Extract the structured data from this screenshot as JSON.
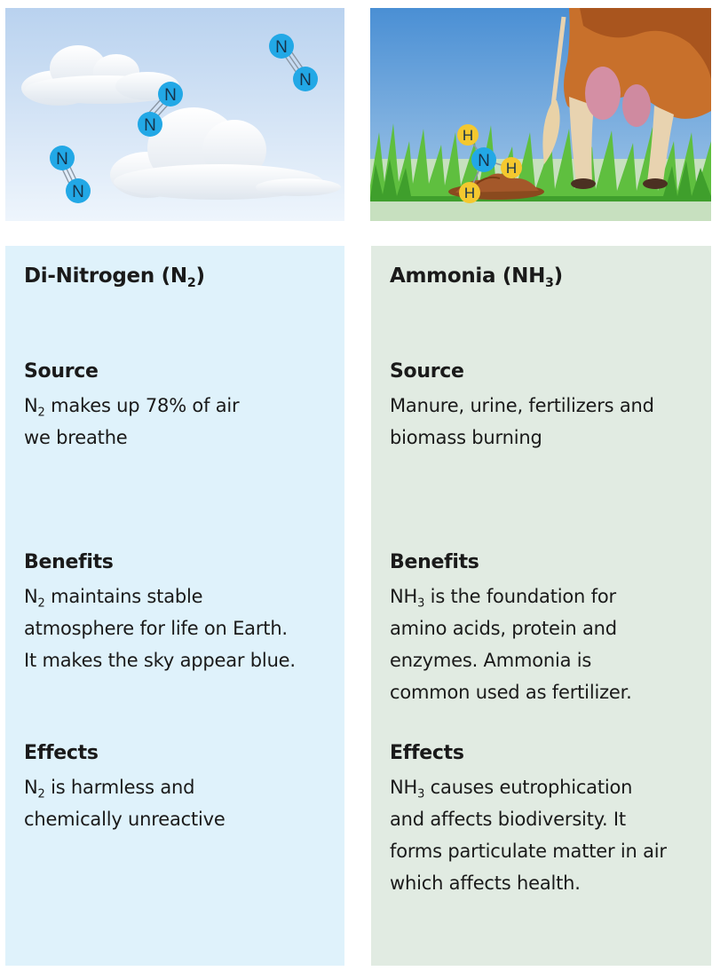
{
  "colors": {
    "left_panel": "#dff2fb",
    "right_panel": "#e1ebe2",
    "sky_top": "#b9d2ef",
    "grass": "#5fbf3f",
    "nitrogen_atom": "#22a8e6",
    "hydrogen_atom": "#f4c82f"
  },
  "atoms": {
    "nitrogen": "N",
    "hydrogen": "H"
  },
  "left": {
    "title": {
      "main": "Di-Nitrogen (N",
      "sub": "2",
      "end": ")"
    },
    "source": {
      "heading": "Source",
      "lines": [
        {
          "pre": "N",
          "sub": "2",
          "post": " makes up 78% of air"
        },
        {
          "pre": "we breathe"
        }
      ]
    },
    "benefits": {
      "heading": "Benefits",
      "lines": [
        {
          "pre": "N",
          "sub": "2",
          "post": " maintains stable"
        },
        {
          "pre": "atmosphere for life on Earth."
        },
        {
          "pre": "It makes the sky appear blue."
        }
      ]
    },
    "effects": {
      "heading": "Effects",
      "lines": [
        {
          "pre": "N",
          "sub": "2",
          "post": " is harmless and"
        },
        {
          "pre": "chemically unreactive"
        }
      ]
    }
  },
  "right": {
    "title": {
      "main": "Ammonia (NH",
      "sub": "3",
      "end": ")"
    },
    "source": {
      "heading": "Source",
      "lines": [
        {
          "pre": "Manure, urine, fertilizers and"
        },
        {
          "pre": "biomass burning"
        }
      ]
    },
    "benefits": {
      "heading": "Benefits",
      "lines": [
        {
          "pre": "NH",
          "sub": "3",
          "post": " is the foundation for"
        },
        {
          "pre": "amino acids, protein and"
        },
        {
          "pre": "enzymes. Ammonia is"
        },
        {
          "pre": "common used as fertilizer."
        }
      ]
    },
    "effects": {
      "heading": "Effects",
      "lines": [
        {
          "pre": "NH",
          "sub": "3",
          "post": " causes eutrophication"
        },
        {
          "pre": "and affects biodiversity. It"
        },
        {
          "pre": "forms particulate matter in air"
        },
        {
          "pre": "which affects health."
        }
      ]
    }
  }
}
